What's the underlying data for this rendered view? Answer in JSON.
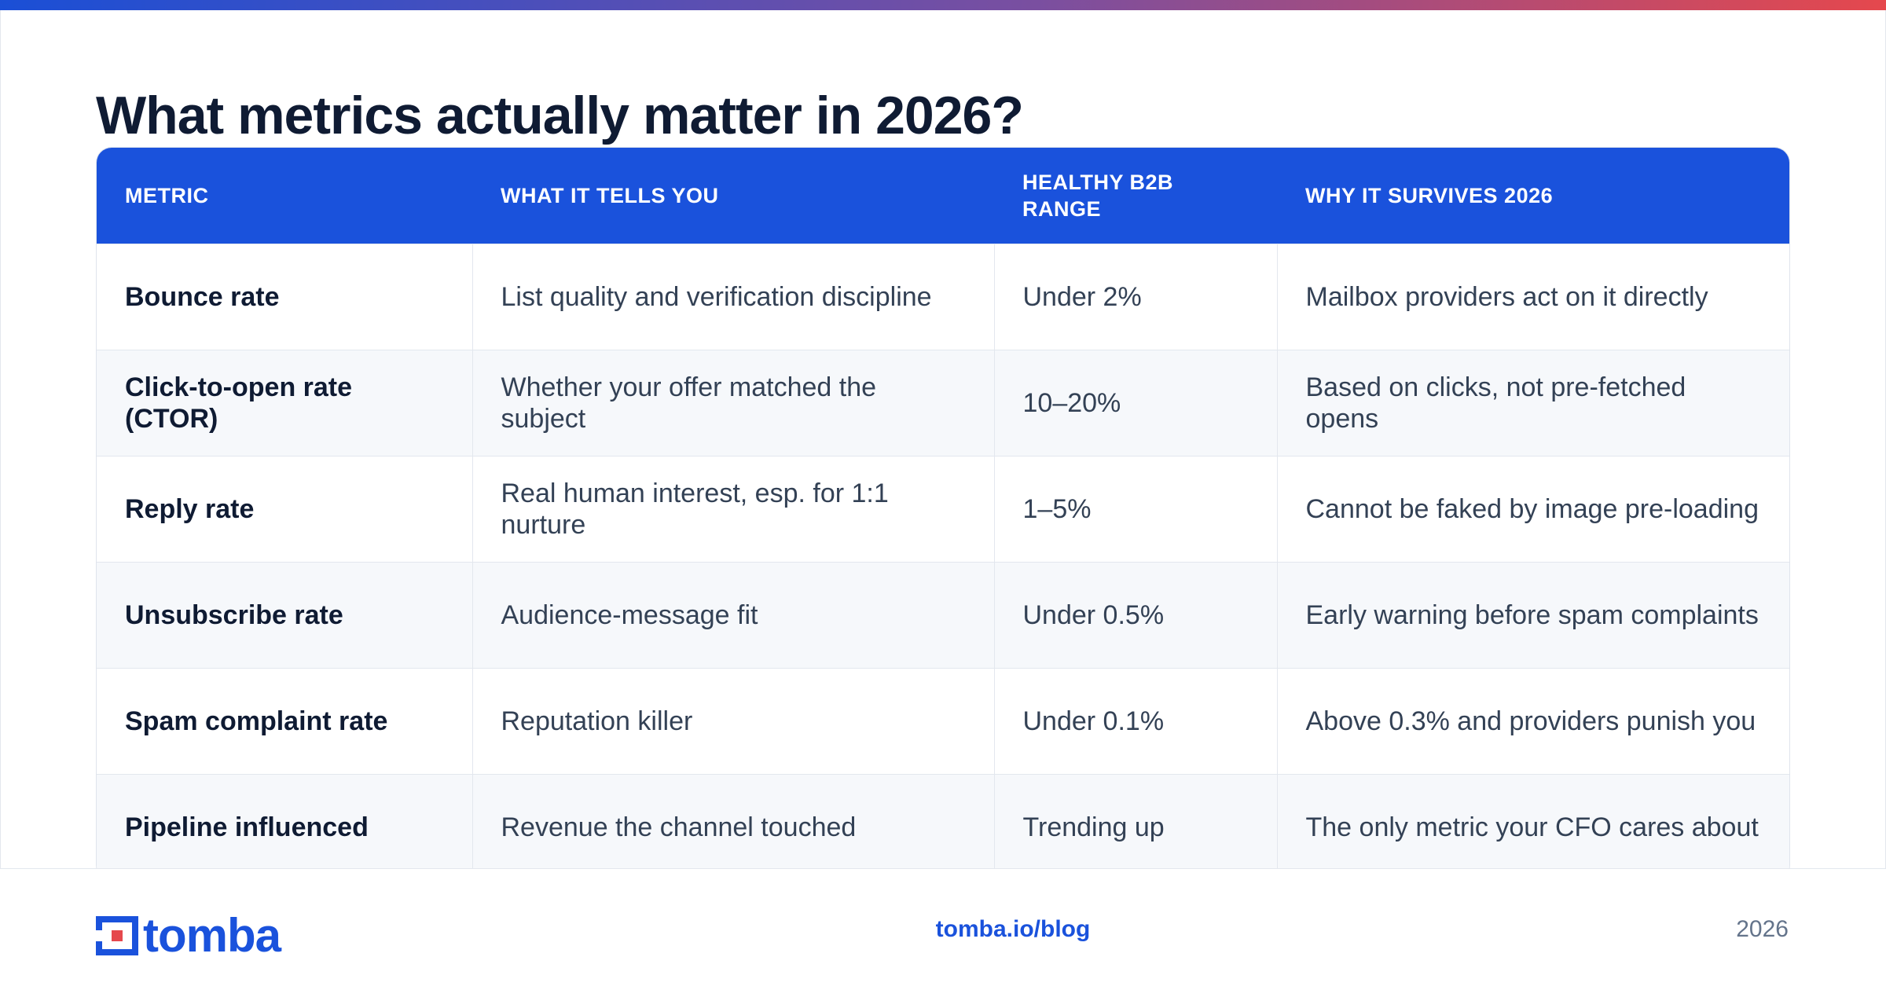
{
  "header": {
    "title": "What metrics actually matter in 2026?"
  },
  "table": {
    "columns": [
      "METRIC",
      "WHAT IT TELLS YOU",
      "HEALTHY B2B RANGE",
      "WHY IT SURVIVES 2026"
    ],
    "rows": [
      [
        "Bounce rate",
        "List quality and verification discipline",
        "Under 2%",
        "Mailbox providers act on it directly"
      ],
      [
        "Click-to-open rate (CTOR)",
        "Whether your offer matched the subject",
        "10–20%",
        "Based on clicks, not pre-fetched opens"
      ],
      [
        "Reply rate",
        "Real human interest, esp. for 1:1 nurture",
        "1–5%",
        "Cannot be faked by image pre-loading"
      ],
      [
        "Unsubscribe rate",
        "Audience-message fit",
        "Under 0.5%",
        "Early warning before spam complaints"
      ],
      [
        "Spam complaint rate",
        "Reputation killer",
        "Under 0.1%",
        "Above 0.3% and providers punish you"
      ],
      [
        "Pipeline influenced",
        "Revenue the channel touched",
        "Trending up",
        "The only metric your CFO cares about"
      ]
    ]
  },
  "footer": {
    "logo": "tomba",
    "url": "tomba.io/blog",
    "year": "2026"
  }
}
